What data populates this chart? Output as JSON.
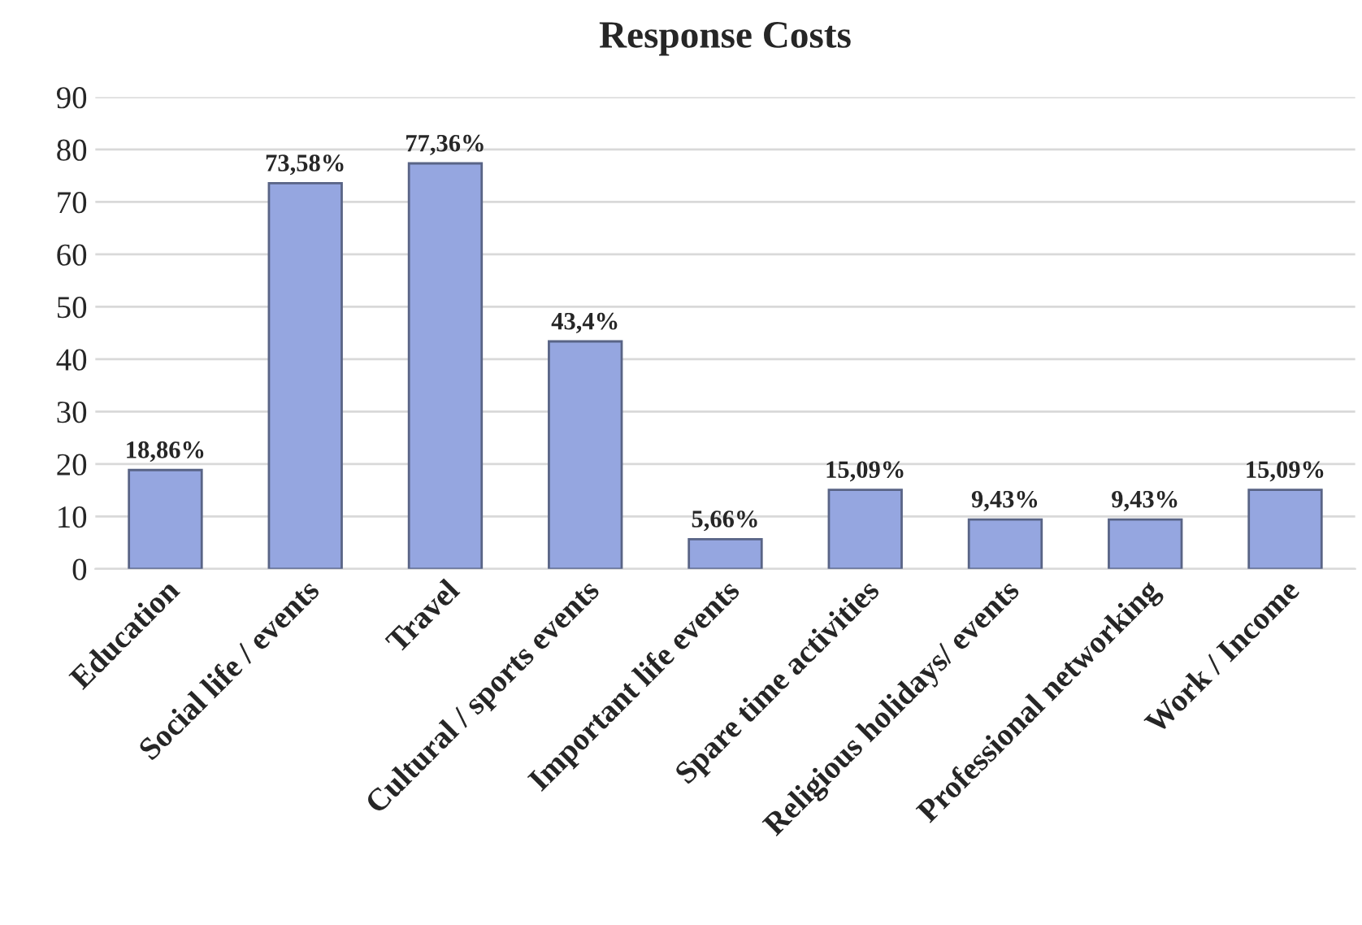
{
  "chart_data": {
    "type": "bar",
    "title": "Response Costs",
    "categories": [
      "Education",
      "Social life / events",
      "Travel",
      "Cultural / sports events",
      "Important life events",
      "Spare time activities",
      "Religious holidays/ events",
      "Professional networking",
      "Work / Income"
    ],
    "values": [
      18.86,
      73.58,
      77.36,
      43.4,
      5.66,
      15.09,
      9.43,
      9.43,
      15.09
    ],
    "value_labels": [
      "18,86%",
      "73,58%",
      "77,36%",
      "43,4%",
      "5,66%",
      "15,09%",
      "9,43%",
      "9,43%",
      "15,09%"
    ],
    "color": "#95a6e0",
    "ylim": [
      0,
      90
    ],
    "yticks": [
      0,
      10,
      20,
      30,
      40,
      50,
      60,
      70,
      80,
      90
    ],
    "grid": "y"
  }
}
